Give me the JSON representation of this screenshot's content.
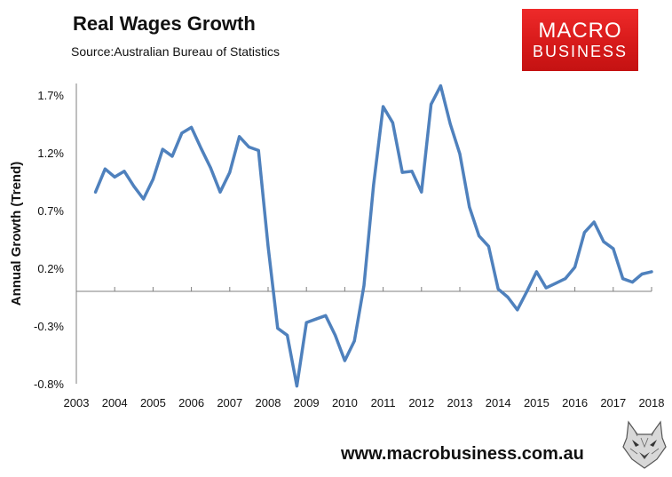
{
  "header": {
    "title": "Real Wages Growth",
    "source": "Source:Australian Bureau of Statistics"
  },
  "logo": {
    "line1": "MACRO",
    "line2": "BUSINESS",
    "color": "#e32222"
  },
  "footer": {
    "website": "www.macrobusiness.com.au",
    "mascot_icon": "wolf-head-icon"
  },
  "chart_data": {
    "type": "line",
    "title": "Real Wages Growth",
    "ylabel": "Annual Growth (Trend)",
    "xlabel": "",
    "xlim": [
      2003,
      2018
    ],
    "ylim": [
      -0.8,
      1.8
    ],
    "x_ticks": [
      "2003",
      "2004",
      "2005",
      "2006",
      "2007",
      "2008",
      "2009",
      "2010",
      "2011",
      "2012",
      "2013",
      "2014",
      "2015",
      "2016",
      "2017",
      "2018"
    ],
    "y_ticks": [
      "1.7%",
      "1.2%",
      "0.7%",
      "0.2%",
      "-0.3%",
      "-0.8%"
    ],
    "y_tick_values": [
      1.7,
      1.2,
      0.7,
      0.2,
      -0.3,
      -0.8
    ],
    "grid": false,
    "line_color": "#4f81bd",
    "series": [
      {
        "x": [
          2003.5,
          2003.75,
          2004,
          2004.25,
          2004.5,
          2004.75,
          2005,
          2005.25,
          2005.5,
          2005.75,
          2006,
          2006.25,
          2006.5,
          2006.75,
          2007,
          2007.25,
          2007.5,
          2007.75,
          2008,
          2008.25,
          2008.5,
          2008.75,
          2009,
          2009.25,
          2009.5,
          2009.75,
          2010,
          2010.25,
          2010.5,
          2010.75,
          2011,
          2011.25,
          2011.5,
          2011.75,
          2012,
          2012.25,
          2012.5,
          2012.75,
          2013,
          2013.25,
          2013.5,
          2013.75,
          2014,
          2014.25,
          2014.5,
          2014.75,
          2015,
          2015.25,
          2015.5,
          2015.75,
          2016,
          2016.25,
          2016.5,
          2016.75,
          2017,
          2017.25,
          2017.5,
          2017.75,
          2018
        ],
        "y": [
          0.86,
          1.06,
          0.99,
          1.04,
          0.91,
          0.8,
          0.97,
          1.23,
          1.17,
          1.37,
          1.42,
          1.24,
          1.07,
          0.86,
          1.03,
          1.34,
          1.25,
          1.22,
          0.39,
          -0.32,
          -0.38,
          -0.82,
          -0.27,
          -0.24,
          -0.21,
          -0.38,
          -0.6,
          -0.43,
          0.05,
          0.92,
          1.6,
          1.46,
          1.03,
          1.04,
          0.86,
          1.62,
          1.78,
          1.45,
          1.19,
          0.73,
          0.48,
          0.39,
          0.02,
          -0.05,
          -0.16,
          0.0,
          0.17,
          0.03,
          0.07,
          0.11,
          0.21,
          0.51,
          0.6,
          0.43,
          0.37,
          0.11,
          0.08,
          0.15,
          0.17
        ]
      }
    ]
  }
}
